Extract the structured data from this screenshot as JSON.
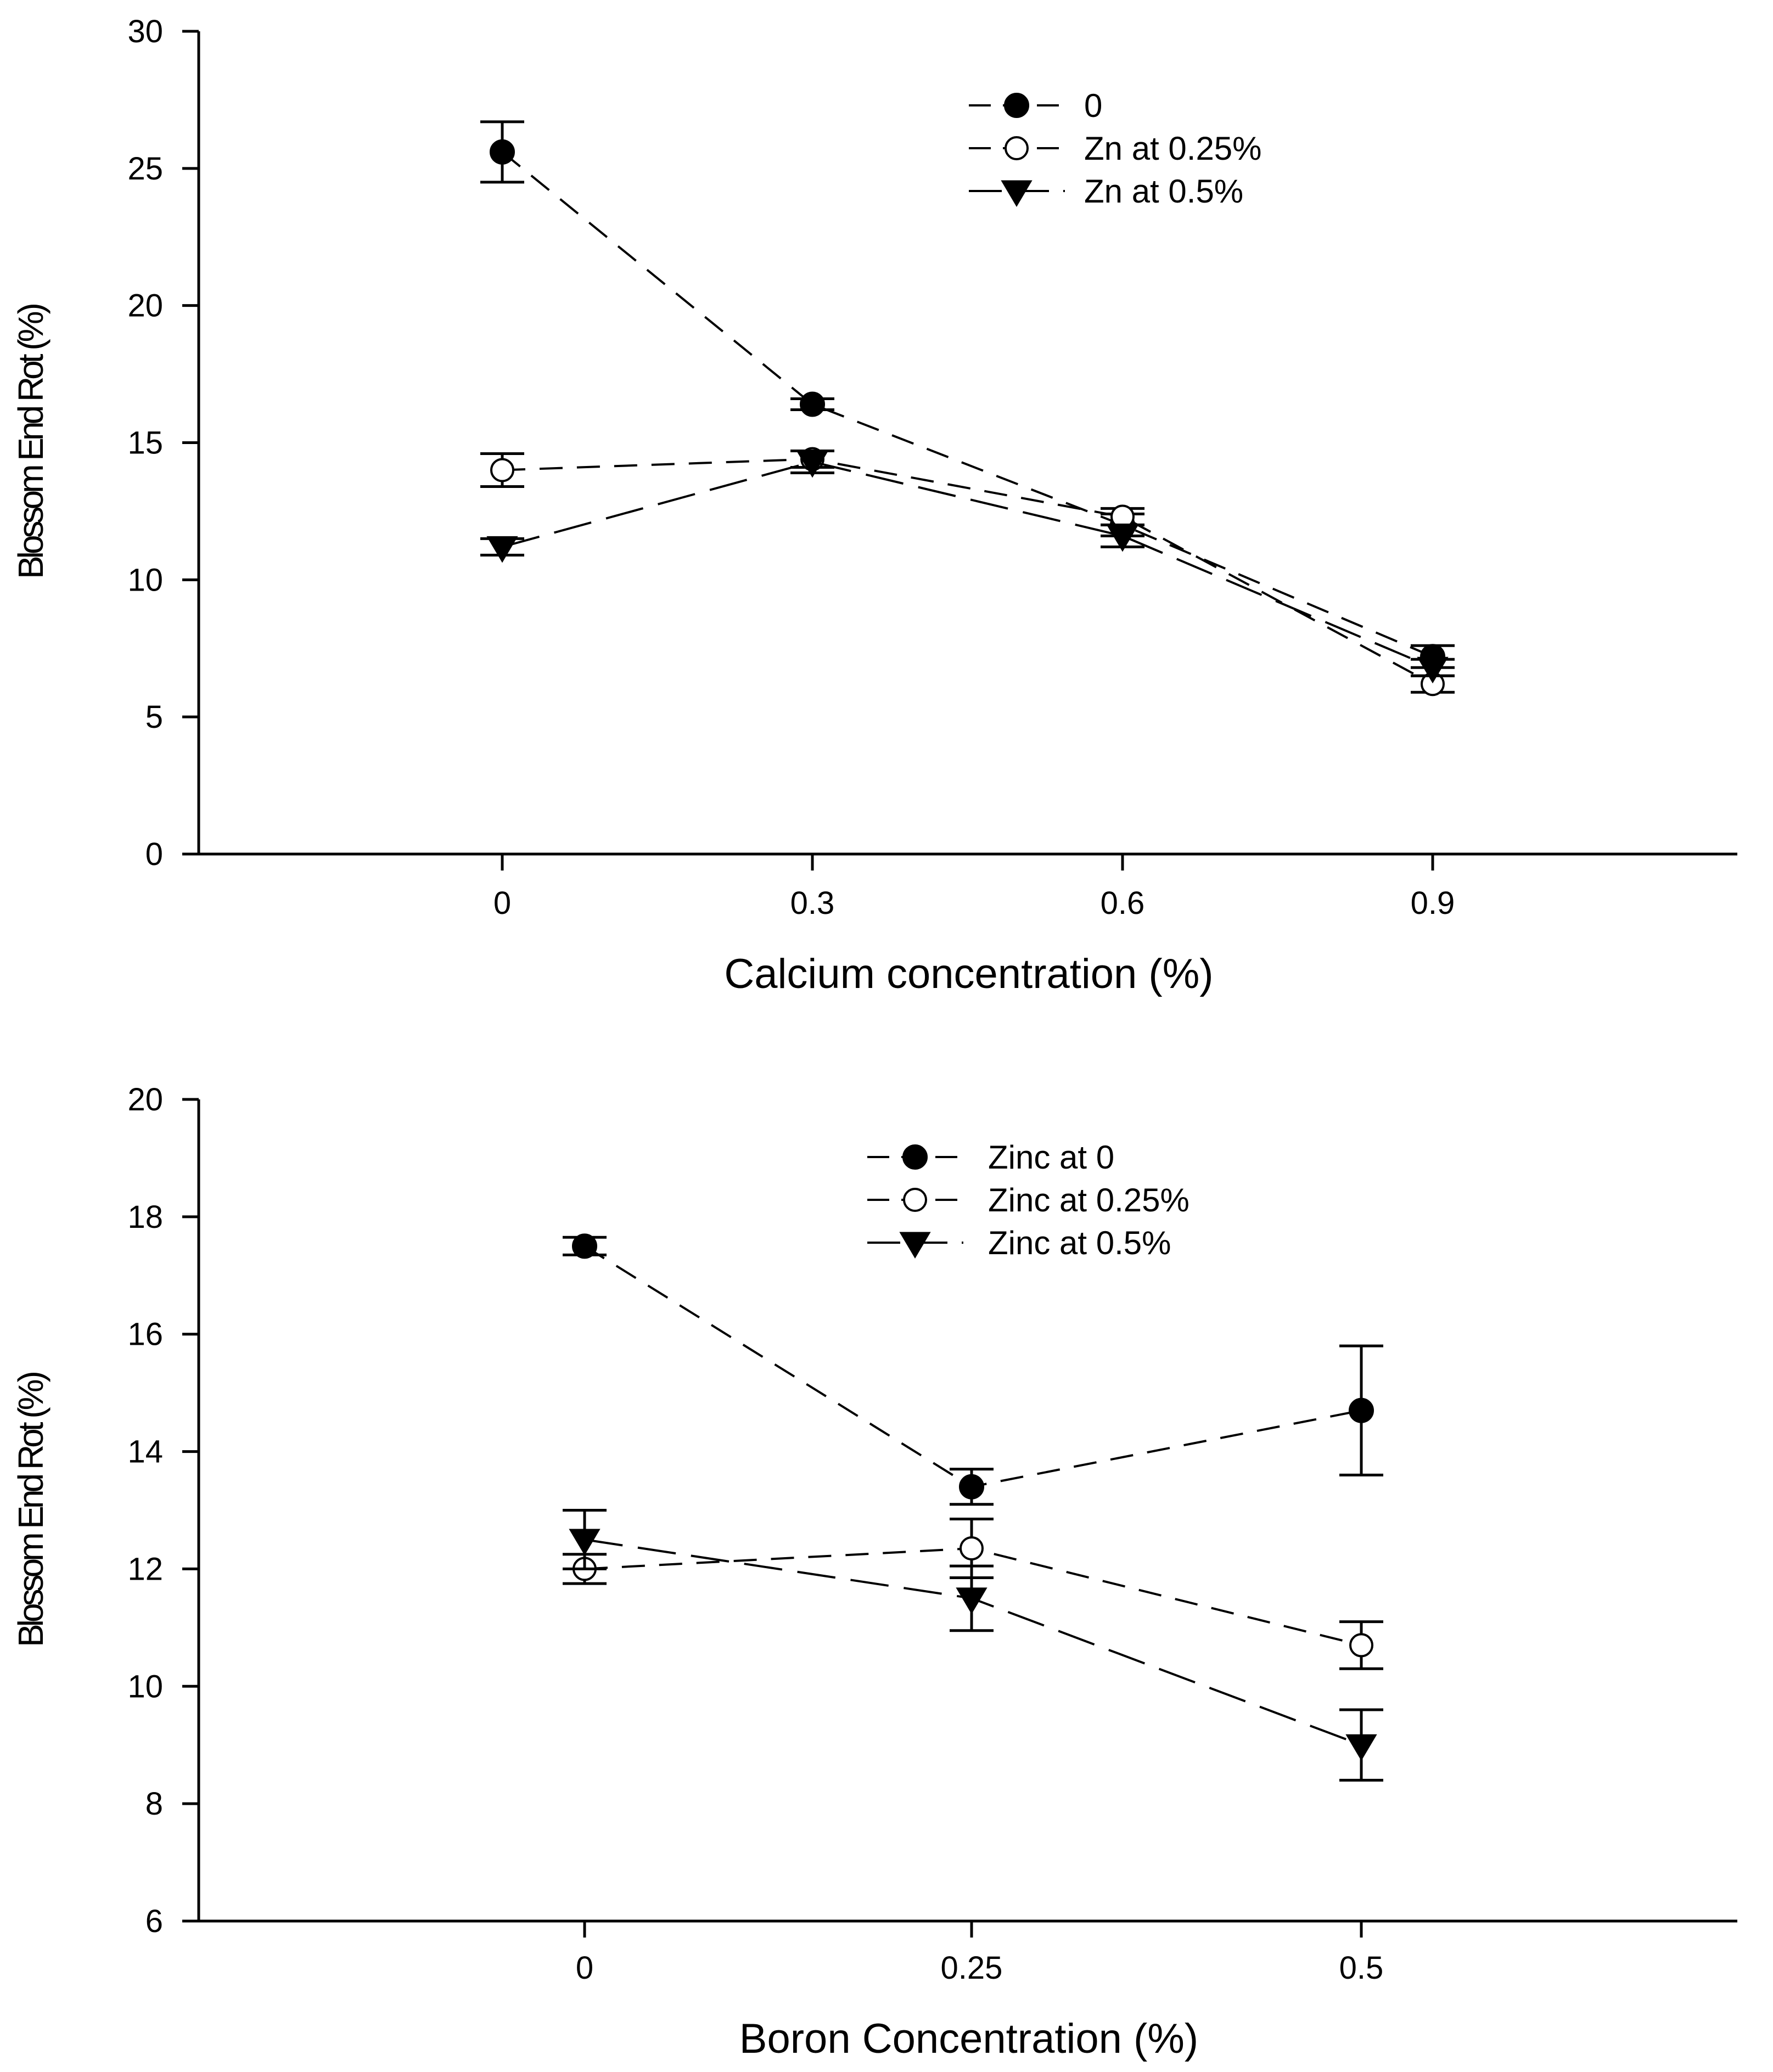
{
  "chart_data": [
    {
      "type": "line",
      "xlabel": "Calcium concentration (%)",
      "ylabel": "Blossom End Rot (%)",
      "x": [
        0,
        0.3,
        0.6,
        0.9
      ],
      "x_tick_labels": [
        "0",
        "0.3",
        "0.6",
        "0.9"
      ],
      "ylim": [
        0,
        30
      ],
      "y_ticks": [
        0,
        5,
        10,
        15,
        20,
        25,
        30
      ],
      "legend_position": "top-right",
      "error_bars": true,
      "grid": false,
      "series": [
        {
          "name": "0",
          "marker": "filled-circle",
          "line": "dash",
          "values": [
            25.6,
            16.4,
            12.0,
            7.2
          ],
          "err": [
            1.1,
            0.2,
            0.4,
            0.4
          ]
        },
        {
          "name": "Zn at 0.25%",
          "marker": "open-circle",
          "line": "dash",
          "values": [
            14.0,
            14.4,
            12.3,
            6.2
          ],
          "err": [
            0.6,
            0.3,
            0.3,
            0.3
          ]
        },
        {
          "name": "Zn at 0.5%",
          "marker": "filled-triangle-down",
          "line": "longdash",
          "values": [
            11.2,
            14.3,
            11.6,
            6.8
          ],
          "err": [
            0.3,
            0.4,
            0.4,
            0.3
          ]
        }
      ]
    },
    {
      "type": "line",
      "xlabel": "Boron Concentration (%)",
      "ylabel": "Blossom End Rot (%)",
      "x": [
        0,
        0.25,
        0.5
      ],
      "x_tick_labels": [
        "0",
        "0.25",
        "0.5"
      ],
      "ylim": [
        6,
        20
      ],
      "y_ticks": [
        6,
        8,
        10,
        12,
        14,
        16,
        18,
        20
      ],
      "legend_position": "top-center",
      "error_bars": true,
      "grid": false,
      "series": [
        {
          "name": "Zinc at 0",
          "marker": "filled-circle",
          "line": "dash",
          "values": [
            17.5,
            13.4,
            14.7
          ],
          "err": [
            0.15,
            0.3,
            1.1
          ]
        },
        {
          "name": "Zinc at 0.25%",
          "marker": "open-circle",
          "line": "dash",
          "values": [
            12.0,
            12.35,
            10.7
          ],
          "err": [
            0.25,
            0.5,
            0.4
          ]
        },
        {
          "name": "Zinc at 0.5%",
          "marker": "filled-triangle-down",
          "line": "longdash",
          "values": [
            12.5,
            11.5,
            9.0
          ],
          "err": [
            0.5,
            0.55,
            0.6
          ]
        }
      ]
    }
  ]
}
